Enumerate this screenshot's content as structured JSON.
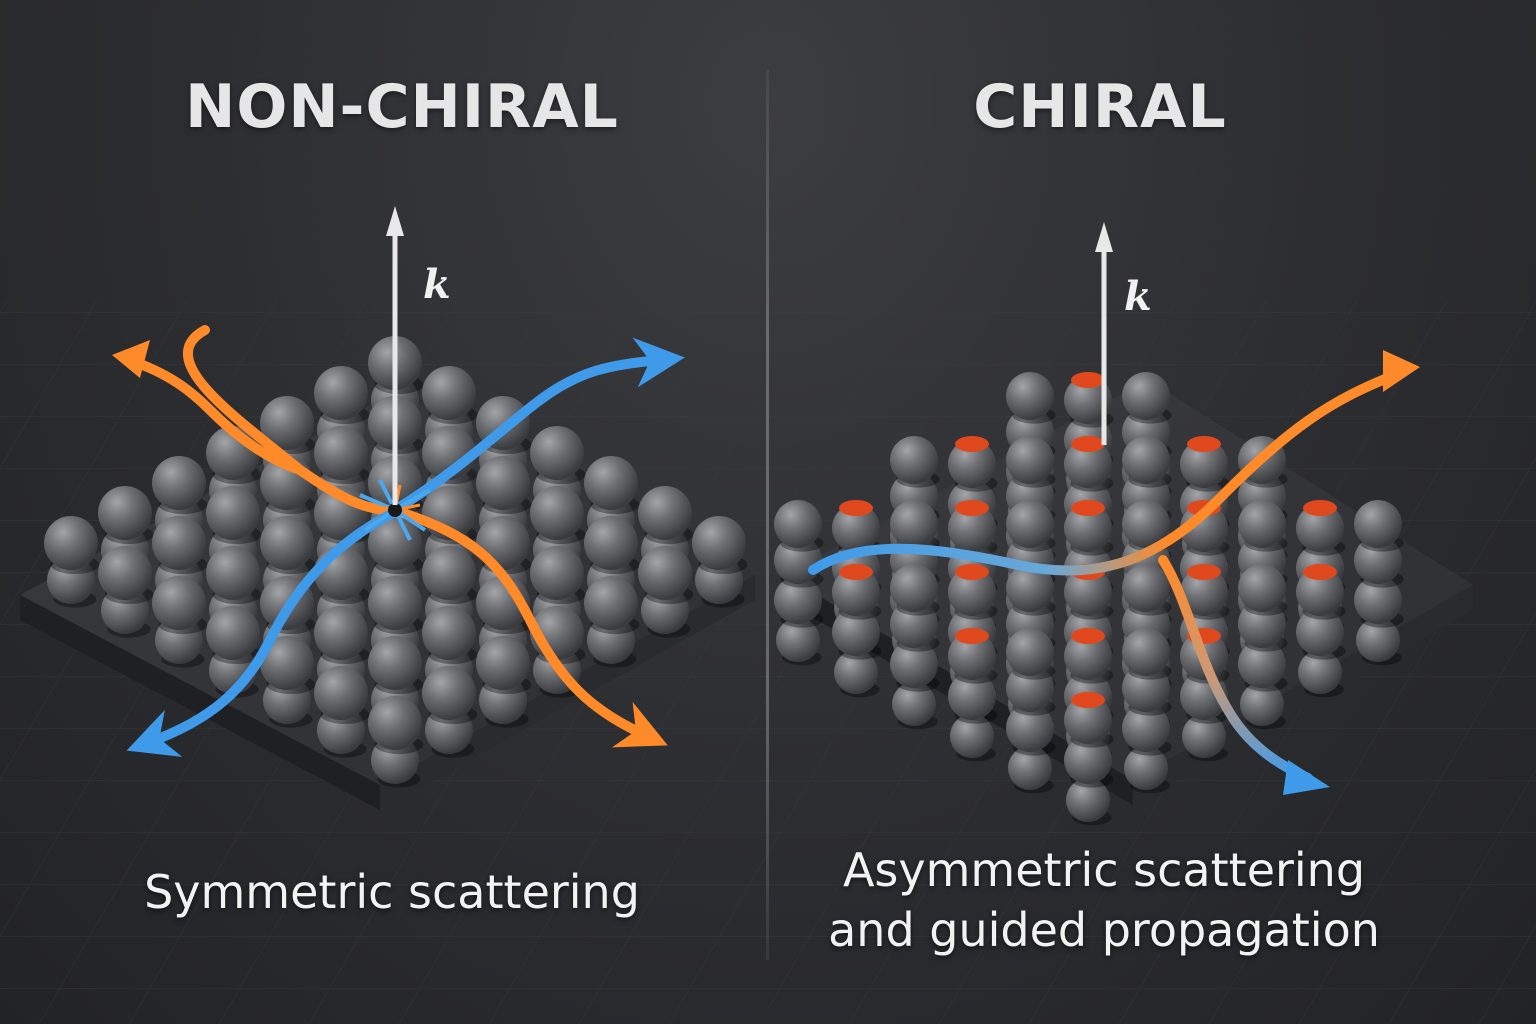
{
  "left_panel": {
    "title": "NON-CHIRAL",
    "vector_label": "k",
    "caption": "Symmetric scattering"
  },
  "right_panel": {
    "title": "CHIRAL",
    "vector_label": "k",
    "caption_line1": "Asymmetric scattering",
    "caption_line2": "and guided propagation"
  },
  "colors": {
    "background": "#2b2c2f",
    "sphere": "#6b6c70",
    "plate": "#2e2f33",
    "orange_wave": "#ff8a2a",
    "blue_wave": "#3f9bea",
    "chiral_cap": "#e0481e",
    "text": "#e6e6e6"
  }
}
